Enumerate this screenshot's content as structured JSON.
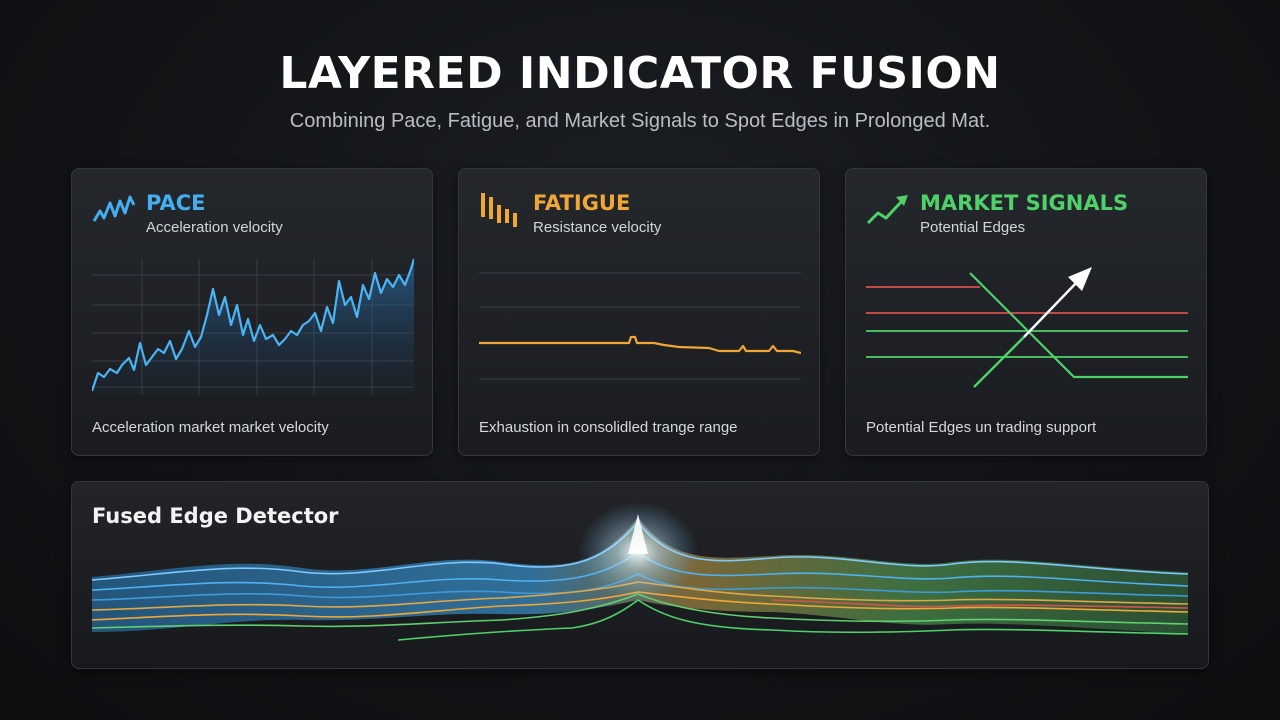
{
  "header": {
    "title": "LAYERED INDICATOR FUSION",
    "subtitle": "Combining Pace, Fatigue, and Market Signals to Spot Edges in Prolonged Mat."
  },
  "colors": {
    "pace": "#45aef0",
    "fatigue": "#f0a735",
    "market": "#4fd169",
    "market_red": "#d9504a",
    "fused_peak": "#ffffff"
  },
  "cards": [
    {
      "id": "pace",
      "icon": "zigzag-line-icon",
      "title": "PACE",
      "subtitle": "Acceleration velocity",
      "footer": "Acceleration market market velocity"
    },
    {
      "id": "fatigue",
      "icon": "descending-bars-icon",
      "title": "FATIGUE",
      "subtitle": "Resistance velocity",
      "footer": "Exhaustion in consolidled trange range"
    },
    {
      "id": "market",
      "icon": "trend-up-arrow-icon",
      "title": "MARKET SIGNALS",
      "subtitle": "Potential Edges",
      "footer": "Potential Edges un trading support"
    }
  ],
  "fused": {
    "title": "Fused Edge Detector"
  }
}
